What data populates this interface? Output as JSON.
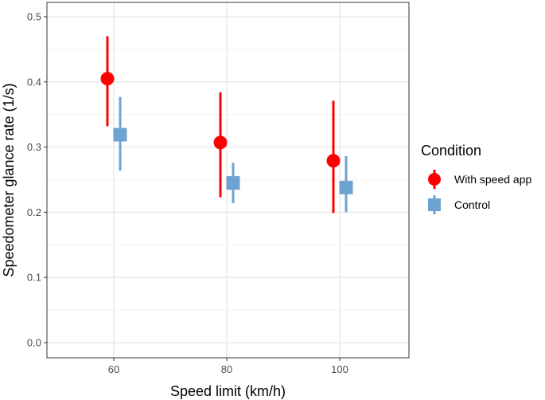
{
  "chart_data": {
    "type": "scatter",
    "subtype": "point-range (dodged)",
    "xlabel": "Speed limit (km/h)",
    "ylabel": "Speedometer glance rate (1/s)",
    "categories": [
      "60",
      "80",
      "100"
    ],
    "ylim": [
      0,
      0.5
    ],
    "y_ticks": [
      "0.0",
      "0.1",
      "0.2",
      "0.3",
      "0.4",
      "0.5"
    ],
    "grid": true,
    "legend": {
      "title": "Condition",
      "placement": "right"
    },
    "series": [
      {
        "name": "With speed app",
        "color": "#ff0000",
        "marker": "circle",
        "values": [
          0.405,
          0.307,
          0.279
        ],
        "lower": [
          0.332,
          0.223,
          0.199
        ],
        "upper": [
          0.47,
          0.384,
          0.371
        ]
      },
      {
        "name": "Control",
        "color": "#6ea3d1",
        "marker": "square",
        "values": [
          0.319,
          0.245,
          0.238
        ],
        "lower": [
          0.264,
          0.214,
          0.2
        ],
        "upper": [
          0.377,
          0.276,
          0.286
        ]
      }
    ]
  }
}
